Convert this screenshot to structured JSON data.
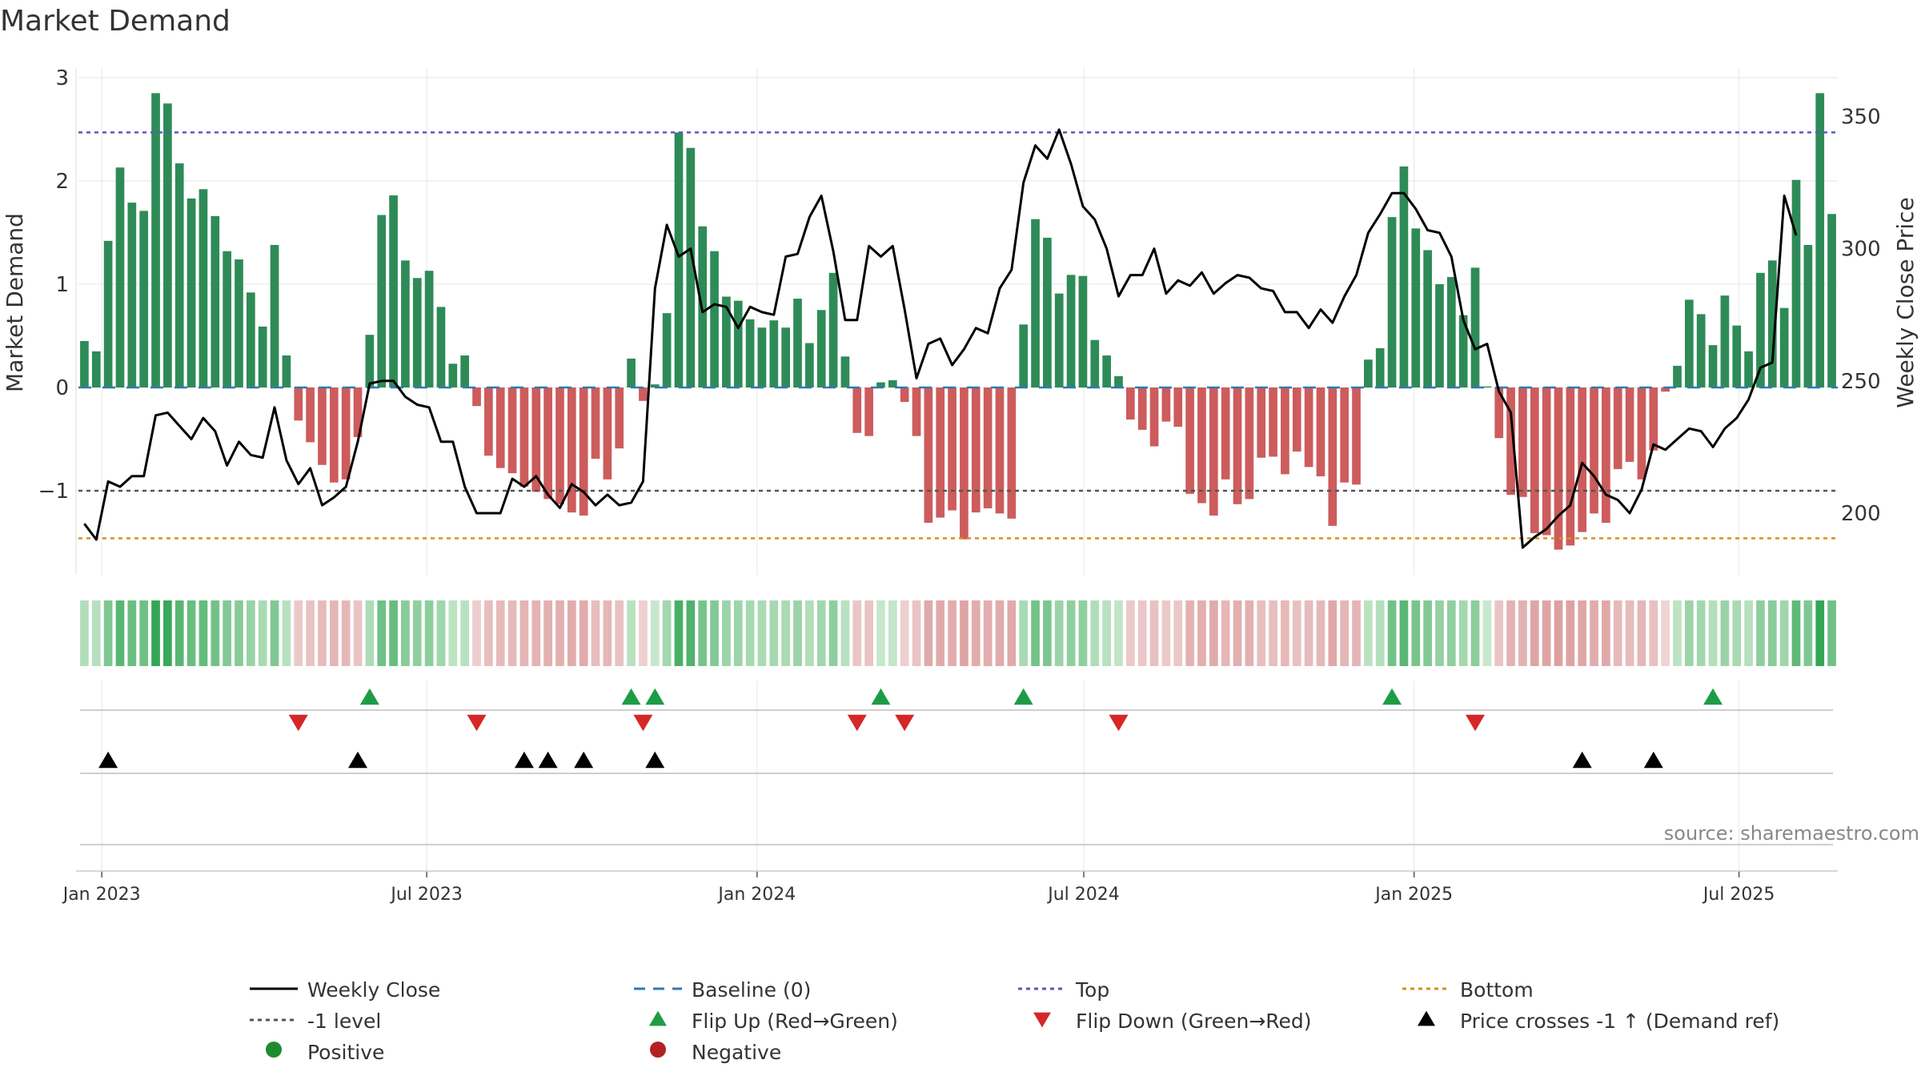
{
  "chart_data": {
    "type": "bar",
    "title": "Market Demand",
    "ylabel_left": "Market Demand",
    "ylabel_right": "Weekly Close Price",
    "source": "source: sharemaestro.com",
    "ylim_left": [
      -1.82,
      3.0
    ],
    "ylim_right": [
      180,
      362
    ],
    "yticks_left": [
      3,
      2,
      1,
      0,
      -1
    ],
    "yticks_right": [
      350,
      300,
      250,
      200
    ],
    "reference_lines": {
      "top": 2.47,
      "baseline": 0,
      "minus_one": -1,
      "bottom": -1.46
    },
    "x_start": "2022-12-19",
    "x_end": "2025-08-25",
    "x_ticks": [
      {
        "label": "Jan 2023",
        "date": "2023-01-01"
      },
      {
        "label": "Jul 2023",
        "date": "2023-07-01"
      },
      {
        "label": "Jan 2024",
        "date": "2024-01-01"
      },
      {
        "label": "Jul 2024",
        "date": "2024-07-01"
      },
      {
        "label": "Jan 2025",
        "date": "2025-01-01"
      },
      {
        "label": "Jul 2025",
        "date": "2025-07-01"
      }
    ],
    "demand": [
      0.45,
      0.35,
      1.42,
      2.13,
      1.79,
      1.71,
      2.85,
      2.75,
      2.17,
      1.83,
      1.92,
      1.66,
      1.32,
      1.24,
      0.92,
      0.59,
      1.38,
      0.31,
      -0.32,
      -0.53,
      -0.75,
      -0.92,
      -0.89,
      -0.48,
      0.51,
      1.67,
      1.86,
      1.23,
      1.06,
      1.13,
      0.78,
      0.23,
      0.31,
      -0.18,
      -0.66,
      -0.78,
      -0.83,
      -0.96,
      -1.01,
      -1.08,
      -1.13,
      -1.21,
      -1.24,
      -0.69,
      -0.89,
      -0.59,
      0.28,
      -0.13,
      0.03,
      0.72,
      2.47,
      2.32,
      1.56,
      1.32,
      0.88,
      0.84,
      0.66,
      0.58,
      0.65,
      0.58,
      0.86,
      0.43,
      0.75,
      1.11,
      0.3,
      -0.44,
      -0.47,
      0.05,
      0.07,
      -0.14,
      -0.47,
      -1.31,
      -1.26,
      -1.19,
      -1.47,
      -1.21,
      -1.17,
      -1.22,
      -1.27,
      0.61,
      1.63,
      1.45,
      0.91,
      1.09,
      1.08,
      0.46,
      0.31,
      0.11,
      -0.31,
      -0.41,
      -0.57,
      -0.33,
      -0.38,
      -1.03,
      -1.12,
      -1.24,
      -0.89,
      -1.13,
      -1.08,
      -0.68,
      -0.67,
      -0.84,
      -0.62,
      -0.77,
      -0.86,
      -1.34,
      -0.92,
      -0.94,
      0.27,
      0.38,
      1.65,
      2.14,
      1.54,
      1.33,
      1.0,
      1.07,
      0.7,
      1.16,
      0.01,
      -0.49,
      -1.04,
      -1.06,
      -1.41,
      -1.43,
      -1.57,
      -1.53,
      -1.4,
      -1.22,
      -1.31,
      -0.79,
      -0.72,
      -0.89,
      -0.61,
      -0.04,
      0.21,
      0.85,
      0.71,
      0.41,
      0.89,
      0.6,
      0.35,
      1.11,
      1.23,
      0.77,
      2.01,
      1.38,
      2.85,
      1.68
    ],
    "weekly_close": [
      196,
      190,
      212,
      210,
      214,
      214,
      237,
      238,
      233,
      228,
      236,
      231,
      218,
      227,
      222,
      221,
      240,
      220,
      211,
      217,
      203,
      206,
      210,
      227,
      249,
      250,
      250,
      244,
      241,
      240,
      227,
      227,
      210,
      200,
      200,
      200,
      213,
      210,
      214,
      207,
      202,
      211,
      208,
      203,
      207,
      203,
      204,
      212,
      285,
      309,
      297,
      300,
      276,
      279,
      278,
      270,
      278,
      276,
      275,
      297,
      298,
      312,
      320,
      299,
      273,
      273,
      301,
      297,
      301,
      277,
      251,
      264,
      266,
      256,
      262,
      270,
      268,
      285,
      292,
      325,
      339,
      334,
      345,
      332,
      316,
      311,
      300,
      282,
      290,
      290,
      300,
      283,
      288,
      286,
      291,
      283,
      287,
      290,
      289,
      285,
      284,
      276,
      276,
      270,
      277,
      272,
      282,
      290,
      306,
      313,
      321,
      321,
      315,
      307,
      306,
      297,
      273,
      262,
      264,
      246,
      238,
      187,
      191,
      194,
      199,
      203,
      219,
      214,
      207,
      205,
      200,
      209,
      226,
      224,
      228,
      232,
      231,
      225,
      232,
      236,
      243,
      255,
      257,
      320,
      305
    ],
    "flip_up_weeks": [
      24,
      46,
      48,
      67,
      79,
      110,
      137
    ],
    "flip_down_weeks": [
      18,
      33,
      47,
      65,
      69,
      87,
      117
    ],
    "price_cross_weeks": [
      2,
      23,
      37,
      39,
      42,
      48,
      126,
      132
    ],
    "legend": [
      {
        "label": "Weekly Close",
        "type": "line",
        "color": "#000000",
        "dash": "solid"
      },
      {
        "label": "Baseline (0)",
        "type": "line",
        "color": "#2f78b5",
        "dash": "long"
      },
      {
        "label": "Top",
        "type": "line",
        "color": "#5b59b8",
        "dash": "dot"
      },
      {
        "label": "Bottom",
        "type": "line",
        "color": "#d4901e",
        "dash": "dot"
      },
      {
        "label": "-1 level",
        "type": "line",
        "color": "#555555",
        "dash": "dot"
      },
      {
        "label": "Flip Up (Red→Green)",
        "type": "triangle-up",
        "color": "#1e9c45"
      },
      {
        "label": "Flip Down (Green→Red)",
        "type": "triangle-down",
        "color": "#d62728"
      },
      {
        "label": "Price crosses -1 ↑ (Demand ref)",
        "type": "triangle-up",
        "color": "#000000"
      },
      {
        "label": "Positive",
        "type": "dot",
        "color": "#1e8c2e"
      },
      {
        "label": "Negative",
        "type": "dot",
        "color": "#b22222"
      }
    ],
    "colors": {
      "positive_bar": "#2e8b57",
      "negative_bar": "#cd5c5c",
      "price_line": "#000000",
      "baseline": "#2f78b5",
      "top": "#5b59b8",
      "bottom": "#d4901e",
      "minus_one": "#555555",
      "flip_up": "#1e9c45",
      "flip_down": "#d62728",
      "price_cross": "#000000",
      "grid": "#e6e6e6",
      "axis_text": "#333333"
    }
  }
}
